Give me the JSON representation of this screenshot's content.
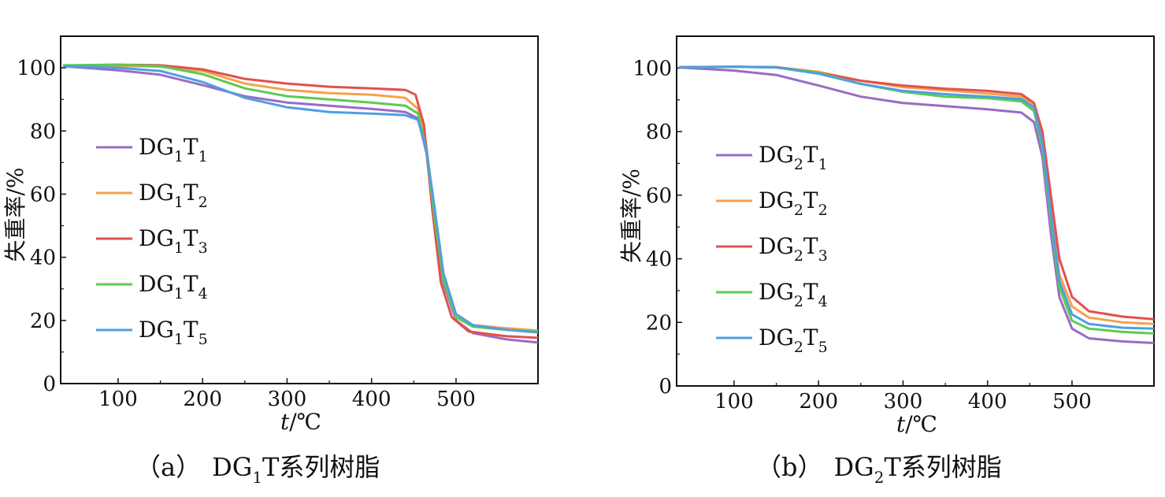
{
  "chart_data": [
    {
      "type": "line",
      "caption": {
        "prefix": "（a）",
        "name_main": "DG",
        "name_sub": "1",
        "name_rest": "T系列树脂"
      },
      "xlabel_italic": "t",
      "xlabel_rest": "/℃",
      "ylabel": "失重率/%",
      "xlim": [
        32,
        597
      ],
      "ylim": [
        0,
        110
      ],
      "xticks": [
        100,
        200,
        300,
        400,
        500
      ],
      "yticks": [
        0,
        20,
        40,
        60,
        80,
        100
      ],
      "legend_position": "middle-left",
      "grid": false,
      "series": [
        {
          "name_main": "DG",
          "name_s1": "1",
          "name_t": "T",
          "name_s2": "1",
          "color": "#9B6BC4",
          "points": [
            [
              35,
              100.5
            ],
            [
              100,
              99.2
            ],
            [
              150,
              97.8
            ],
            [
              200,
              94.5
            ],
            [
              250,
              91.0
            ],
            [
              300,
              89.0
            ],
            [
              350,
              88.0
            ],
            [
              400,
              87.0
            ],
            [
              440,
              86.0
            ],
            [
              455,
              84.0
            ],
            [
              465,
              73.0
            ],
            [
              475,
              50.0
            ],
            [
              485,
              32.0
            ],
            [
              500,
              20.0
            ],
            [
              520,
              16.0
            ],
            [
              560,
              14.0
            ],
            [
              597,
              13.0
            ]
          ]
        },
        {
          "name_main": "DG",
          "name_s1": "1",
          "name_t": "T",
          "name_s2": "2",
          "color": "#F4A24C",
          "points": [
            [
              35,
              100.6
            ],
            [
              100,
              100.6
            ],
            [
              150,
              100.4
            ],
            [
              200,
              99.0
            ],
            [
              250,
              95.0
            ],
            [
              300,
              93.0
            ],
            [
              350,
              92.0
            ],
            [
              400,
              91.5
            ],
            [
              440,
              90.5
            ],
            [
              455,
              87.0
            ],
            [
              465,
              75.0
            ],
            [
              475,
              52.0
            ],
            [
              485,
              33.0
            ],
            [
              500,
              21.0
            ],
            [
              520,
              18.5
            ],
            [
              560,
              17.5
            ],
            [
              597,
              16.8
            ]
          ]
        },
        {
          "name_main": "DG",
          "name_s1": "1",
          "name_t": "T",
          "name_s2": "3",
          "color": "#E0524E",
          "points": [
            [
              35,
              100.7
            ],
            [
              100,
              101.0
            ],
            [
              150,
              100.8
            ],
            [
              200,
              99.5
            ],
            [
              250,
              96.5
            ],
            [
              300,
              95.0
            ],
            [
              350,
              94.0
            ],
            [
              400,
              93.5
            ],
            [
              440,
              93.0
            ],
            [
              452,
              91.5
            ],
            [
              462,
              82.0
            ],
            [
              472,
              55.0
            ],
            [
              482,
              32.0
            ],
            [
              495,
              21.0
            ],
            [
              515,
              16.5
            ],
            [
              560,
              15.0
            ],
            [
              597,
              14.5
            ]
          ]
        },
        {
          "name_main": "DG",
          "name_s1": "1",
          "name_t": "T",
          "name_s2": "4",
          "color": "#5CCB52",
          "points": [
            [
              35,
              100.8
            ],
            [
              100,
              101.0
            ],
            [
              150,
              100.5
            ],
            [
              200,
              98.0
            ],
            [
              250,
              93.5
            ],
            [
              300,
              91.0
            ],
            [
              350,
              90.0
            ],
            [
              400,
              89.0
            ],
            [
              440,
              88.0
            ],
            [
              455,
              85.5
            ],
            [
              465,
              74.0
            ],
            [
              475,
              52.0
            ],
            [
              485,
              33.0
            ],
            [
              500,
              21.0
            ],
            [
              520,
              18.0
            ],
            [
              560,
              17.0
            ],
            [
              597,
              16.5
            ]
          ]
        },
        {
          "name_main": "DG",
          "name_s1": "1",
          "name_t": "T",
          "name_s2": "5",
          "color": "#4F9FE0",
          "points": [
            [
              35,
              100.5
            ],
            [
              100,
              100.0
            ],
            [
              150,
              99.0
            ],
            [
              200,
              95.5
            ],
            [
              250,
              90.5
            ],
            [
              300,
              87.5
            ],
            [
              350,
              86.0
            ],
            [
              400,
              85.5
            ],
            [
              440,
              85.0
            ],
            [
              455,
              83.5
            ],
            [
              465,
              74.0
            ],
            [
              475,
              55.0
            ],
            [
              485,
              35.0
            ],
            [
              500,
              22.0
            ],
            [
              520,
              18.5
            ],
            [
              560,
              17.0
            ],
            [
              597,
              16.2
            ]
          ]
        }
      ]
    },
    {
      "type": "line",
      "caption": {
        "prefix": "（b）",
        "name_main": "DG",
        "name_sub": "2",
        "name_rest": "T系列树脂"
      },
      "xlabel_italic": "t",
      "xlabel_rest": "/℃",
      "ylabel": "失重率/%",
      "xlim": [
        32,
        597
      ],
      "ylim": [
        0,
        110
      ],
      "xticks": [
        100,
        200,
        300,
        400,
        500
      ],
      "yticks": [
        0,
        20,
        40,
        60,
        80,
        100
      ],
      "legend_position": "middle-left",
      "grid": false,
      "series": [
        {
          "name_main": "DG",
          "name_s1": "2",
          "name_t": "T",
          "name_s2": "1",
          "color": "#9B6BC4",
          "points": [
            [
              35,
              100.2
            ],
            [
              100,
              99.2
            ],
            [
              150,
              97.8
            ],
            [
              200,
              94.5
            ],
            [
              250,
              91.0
            ],
            [
              300,
              89.0
            ],
            [
              350,
              88.0
            ],
            [
              400,
              87.0
            ],
            [
              440,
              86.0
            ],
            [
              455,
              83.0
            ],
            [
              465,
              72.0
            ],
            [
              475,
              48.0
            ],
            [
              485,
              28.0
            ],
            [
              500,
              18.0
            ],
            [
              520,
              15.0
            ],
            [
              560,
              14.0
            ],
            [
              597,
              13.5
            ]
          ]
        },
        {
          "name_main": "DG",
          "name_s1": "2",
          "name_t": "T",
          "name_s2": "2",
          "color": "#F4A24C",
          "points": [
            [
              35,
              100.3
            ],
            [
              100,
              100.4
            ],
            [
              150,
              100.3
            ],
            [
              200,
              98.8
            ],
            [
              250,
              96.0
            ],
            [
              300,
              94.0
            ],
            [
              350,
              93.0
            ],
            [
              400,
              92.0
            ],
            [
              440,
              91.0
            ],
            [
              455,
              88.0
            ],
            [
              465,
              78.0
            ],
            [
              475,
              56.0
            ],
            [
              485,
              35.0
            ],
            [
              500,
              25.0
            ],
            [
              520,
              21.5
            ],
            [
              560,
              20.0
            ],
            [
              597,
              19.5
            ]
          ]
        },
        {
          "name_main": "DG",
          "name_s1": "2",
          "name_t": "T",
          "name_s2": "3",
          "color": "#E0524E",
          "points": [
            [
              35,
              100.3
            ],
            [
              100,
              100.4
            ],
            [
              150,
              100.3
            ],
            [
              200,
              98.5
            ],
            [
              250,
              96.0
            ],
            [
              300,
              94.5
            ],
            [
              350,
              93.5
            ],
            [
              400,
              92.8
            ],
            [
              440,
              91.8
            ],
            [
              455,
              89.0
            ],
            [
              465,
              80.0
            ],
            [
              475,
              60.0
            ],
            [
              485,
              40.0
            ],
            [
              500,
              28.0
            ],
            [
              520,
              23.5
            ],
            [
              560,
              21.8
            ],
            [
              597,
              21.0
            ]
          ]
        },
        {
          "name_main": "DG",
          "name_s1": "2",
          "name_t": "T",
          "name_s2": "4",
          "color": "#5CCB52",
          "points": [
            [
              35,
              100.2
            ],
            [
              100,
              100.4
            ],
            [
              150,
              100.2
            ],
            [
              200,
              98.5
            ],
            [
              250,
              95.0
            ],
            [
              300,
              92.5
            ],
            [
              350,
              91.0
            ],
            [
              400,
              90.5
            ],
            [
              440,
              89.5
            ],
            [
              455,
              86.5
            ],
            [
              465,
              75.0
            ],
            [
              475,
              52.0
            ],
            [
              485,
              31.0
            ],
            [
              500,
              20.5
            ],
            [
              520,
              18.0
            ],
            [
              560,
              17.0
            ],
            [
              597,
              16.5
            ]
          ]
        },
        {
          "name_main": "DG",
          "name_s1": "2",
          "name_t": "T",
          "name_s2": "5",
          "color": "#4F9FE0",
          "points": [
            [
              35,
              100.2
            ],
            [
              100,
              100.4
            ],
            [
              150,
              100.2
            ],
            [
              200,
              98.2
            ],
            [
              250,
              95.0
            ],
            [
              300,
              92.8
            ],
            [
              350,
              91.8
            ],
            [
              400,
              91.0
            ],
            [
              440,
              90.2
            ],
            [
              455,
              87.5
            ],
            [
              465,
              76.5
            ],
            [
              475,
              54.0
            ],
            [
              485,
              33.0
            ],
            [
              500,
              22.5
            ],
            [
              520,
              19.5
            ],
            [
              560,
              18.3
            ],
            [
              597,
              18.0
            ]
          ]
        }
      ]
    }
  ]
}
